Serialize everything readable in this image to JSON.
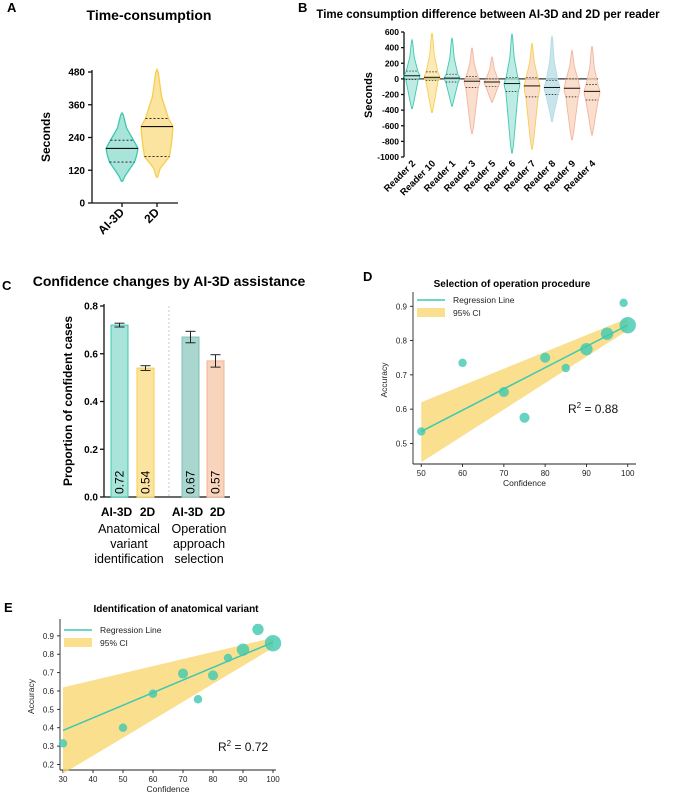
{
  "panels": {
    "a": {
      "letter": "A",
      "title": "Time-consumption"
    },
    "b": {
      "letter": "B",
      "title": "Time consumption difference between AI-3D and 2D per reader"
    },
    "c": {
      "letter": "C",
      "title": "Confidence changes by AI-3D assistance"
    },
    "d": {
      "letter": "D",
      "title": "Selection of operation procedure"
    },
    "e": {
      "letter": "E",
      "title": "Identification of anatomical variant"
    }
  },
  "colors": {
    "teal": "#3EC8B0",
    "teal_light": "#A8E4DA",
    "yellow": "#F8CD4B",
    "yellow_light": "#FBE3A0",
    "red_light": "#F3B3A3",
    "salmon_light": "#F9D4BC",
    "blue_light": "#B5DCE6",
    "ci_band": "#F8D46A",
    "axis": "#111111"
  },
  "chart_data": [
    {
      "id": "A",
      "type": "violin",
      "title": "Time-consumption",
      "xlabel": "",
      "ylabel": "Seconds",
      "ylim": [
        0,
        480
      ],
      "yticks": [
        0,
        120,
        240,
        360,
        480
      ],
      "categories": [
        "AI-3D",
        "2D"
      ],
      "series": [
        {
          "name": "AI-3D",
          "min": 80,
          "q1": 150,
          "median": 200,
          "q3": 230,
          "max": 330
        },
        {
          "name": "2D",
          "min": 95,
          "q1": 170,
          "median": 280,
          "q3": 310,
          "max": 490
        }
      ]
    },
    {
      "id": "B",
      "type": "violin",
      "title": "Time consumption difference between AI-3D and 2D per reader",
      "xlabel": "",
      "ylabel": "Seconds",
      "ylim": [
        -1000,
        600
      ],
      "yticks": [
        600,
        400,
        200,
        0,
        -200,
        -400,
        -600,
        -800,
        -1000
      ],
      "reference_line": 0,
      "categories": [
        "Reader 2",
        "Reader 10",
        "Reader 1",
        "Reader 3",
        "Reader 5",
        "Reader 6",
        "Reader 7",
        "Reader 8",
        "Reader 9",
        "Reader 4"
      ],
      "series": [
        {
          "name": "Reader 2",
          "min": -380,
          "q1": -10,
          "median": 40,
          "q3": 100,
          "max": 500
        },
        {
          "name": "Reader 10",
          "min": -430,
          "q1": -20,
          "median": 20,
          "q3": 90,
          "max": 590
        },
        {
          "name": "Reader 1",
          "min": -350,
          "q1": -40,
          "median": 10,
          "q3": 60,
          "max": 520
        },
        {
          "name": "Reader 3",
          "min": -700,
          "q1": -110,
          "median": -30,
          "q3": 30,
          "max": 400
        },
        {
          "name": "Reader 5",
          "min": -300,
          "q1": -100,
          "median": -40,
          "q3": 0,
          "max": 280
        },
        {
          "name": "Reader 6",
          "min": -950,
          "q1": -160,
          "median": -60,
          "q3": 20,
          "max": 580
        },
        {
          "name": "Reader 7",
          "min": -900,
          "q1": -230,
          "median": -90,
          "q3": 20,
          "max": 460
        },
        {
          "name": "Reader 8",
          "min": -550,
          "q1": -200,
          "median": -110,
          "q3": -20,
          "max": 550
        },
        {
          "name": "Reader 9",
          "min": -780,
          "q1": -230,
          "median": -120,
          "q3": 0,
          "max": 370
        },
        {
          "name": "Reader 4",
          "min": -720,
          "q1": -270,
          "median": -160,
          "q3": -70,
          "max": 420
        }
      ]
    },
    {
      "id": "C",
      "type": "bar",
      "title": "Confidence changes by AI-3D assistance",
      "xlabel": "",
      "ylabel": "Proportion of confident cases",
      "ylim": [
        0,
        0.8
      ],
      "yticks": [
        0.0,
        0.2,
        0.4,
        0.6,
        0.8
      ],
      "groups": [
        {
          "label": "Anatomical variant identification",
          "label_lines": [
            "Anatomical",
            "variant",
            "identification"
          ],
          "bars": [
            {
              "name": "AI-3D",
              "value": 0.72,
              "label": "0.72",
              "error": 0.008
            },
            {
              "name": "2D",
              "value": 0.54,
              "label": "0.54",
              "error": 0.01
            }
          ]
        },
        {
          "label": "Operation approach selection",
          "label_lines": [
            "Operation",
            "approach",
            "selection"
          ],
          "bars": [
            {
              "name": "AI-3D",
              "value": 0.67,
              "label": "0.67",
              "error": 0.024
            },
            {
              "name": "2D",
              "value": 0.57,
              "label": "0.57",
              "error": 0.026
            }
          ]
        }
      ]
    },
    {
      "id": "D",
      "type": "scatter",
      "title": "Selection of operation procedure",
      "xlabel": "Confidence",
      "ylabel": "Accuracy",
      "xlim": [
        48,
        102
      ],
      "ylim": [
        0.44,
        0.93
      ],
      "xticks": [
        50,
        60,
        70,
        80,
        90,
        100
      ],
      "yticks": [
        0.5,
        0.6,
        0.7,
        0.8,
        0.9
      ],
      "legend": [
        "Regression Line",
        "95% CI"
      ],
      "legend_position": "top-left",
      "r2_text": "0.88",
      "regression": {
        "x": [
          50,
          100
        ],
        "y": [
          0.535,
          0.845
        ]
      },
      "ci_band": {
        "x": [
          50,
          100
        ],
        "upper": [
          0.62,
          0.865
        ],
        "lower": [
          0.445,
          0.83
        ]
      },
      "points": [
        {
          "x": 50,
          "y": 0.535,
          "n": 1
        },
        {
          "x": 60,
          "y": 0.735,
          "n": 1
        },
        {
          "x": 70,
          "y": 0.65,
          "n": 2
        },
        {
          "x": 75,
          "y": 0.575,
          "n": 2
        },
        {
          "x": 80,
          "y": 0.75,
          "n": 2
        },
        {
          "x": 85,
          "y": 0.72,
          "n": 1
        },
        {
          "x": 90,
          "y": 0.775,
          "n": 4
        },
        {
          "x": 95,
          "y": 0.82,
          "n": 4
        },
        {
          "x": 99,
          "y": 0.91,
          "n": 1
        },
        {
          "x": 100,
          "y": 0.845,
          "n": 9
        }
      ]
    },
    {
      "id": "E",
      "type": "scatter",
      "title": "Identification of anatomical variant",
      "xlabel": "Confidence",
      "ylabel": "Accuracy",
      "xlim": [
        29,
        101
      ],
      "ylim": [
        0.17,
        0.97
      ],
      "xticks": [
        30,
        40,
        50,
        60,
        70,
        80,
        90,
        100
      ],
      "yticks": [
        0.2,
        0.3,
        0.4,
        0.5,
        0.6,
        0.7,
        0.8,
        0.9
      ],
      "legend": [
        "Regression Line",
        "95% CI"
      ],
      "legend_position": "top-left",
      "r2_text": "0.72",
      "regression": {
        "x": [
          30,
          100
        ],
        "y": [
          0.385,
          0.865
        ]
      },
      "ci_band": {
        "x": [
          30,
          100
        ],
        "upper": [
          0.62,
          0.89
        ],
        "lower": [
          0.15,
          0.835
        ]
      },
      "points": [
        {
          "x": 30,
          "y": 0.315,
          "n": 1
        },
        {
          "x": 50,
          "y": 0.4,
          "n": 1
        },
        {
          "x": 60,
          "y": 0.585,
          "n": 1
        },
        {
          "x": 70,
          "y": 0.695,
          "n": 2
        },
        {
          "x": 75,
          "y": 0.555,
          "n": 1
        },
        {
          "x": 80,
          "y": 0.685,
          "n": 2
        },
        {
          "x": 85,
          "y": 0.78,
          "n": 1
        },
        {
          "x": 90,
          "y": 0.825,
          "n": 4
        },
        {
          "x": 95,
          "y": 0.935,
          "n": 3
        },
        {
          "x": 100,
          "y": 0.86,
          "n": 9
        }
      ]
    }
  ]
}
